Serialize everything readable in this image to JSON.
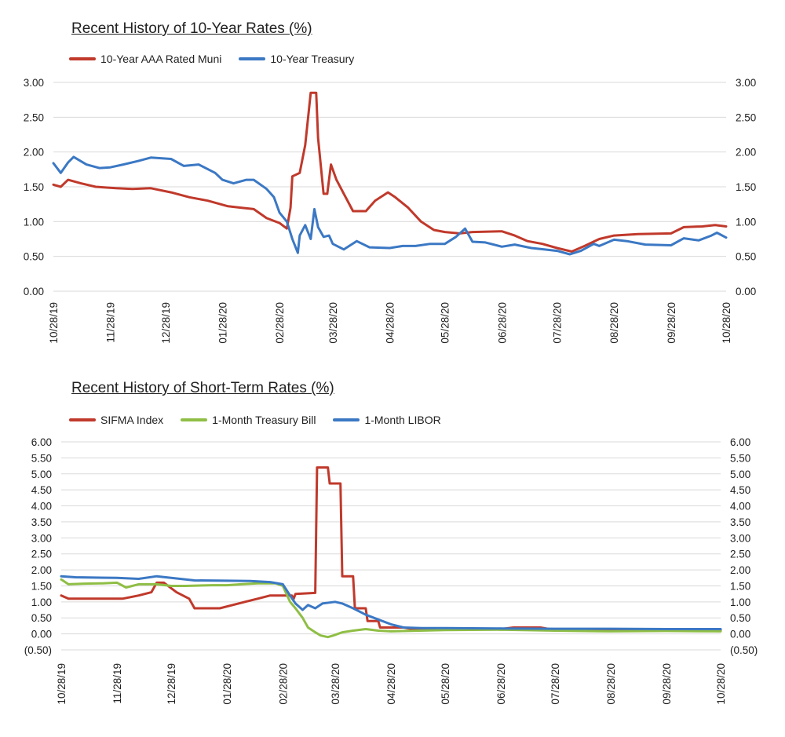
{
  "colors": {
    "red": "#c0392b",
    "blue": "#3b78c4",
    "green": "#8fbe45",
    "grid": "#d9d9d9"
  },
  "chart_data": [
    {
      "type": "line",
      "title": "Recent History of 10-Year Rates (%)",
      "x_axis": {
        "type": "date",
        "labels": [
          "10/28/19",
          "11/28/19",
          "12/28/19",
          "01/28/20",
          "02/28/20",
          "03/28/20",
          "04/28/20",
          "05/28/20",
          "06/28/20",
          "07/28/20",
          "08/28/20",
          "09/28/20",
          "10/28/20"
        ]
      },
      "y_axis": {
        "min": 0,
        "max": 3.0,
        "step": 0.5,
        "tick_labels": [
          "0.00",
          "0.50",
          "1.00",
          "1.50",
          "2.00",
          "2.50",
          "3.00"
        ],
        "right_tick_labels": [
          "0.00",
          "0.50",
          "1.00",
          "1.50",
          "2.00",
          "2.50",
          "3.00"
        ]
      },
      "grid": true,
      "legend_position": "top-left",
      "series": [
        {
          "name": "10-Year AAA Rated Muni",
          "color": "#c0392b",
          "points": [
            [
              "10/28/19",
              1.53
            ],
            [
              "11/01/19",
              1.5
            ],
            [
              "11/05/19",
              1.6
            ],
            [
              "11/12/19",
              1.55
            ],
            [
              "11/20/19",
              1.5
            ],
            [
              "12/01/19",
              1.48
            ],
            [
              "12/10/19",
              1.47
            ],
            [
              "12/20/19",
              1.48
            ],
            [
              "12/31/19",
              1.42
            ],
            [
              "01/10/20",
              1.35
            ],
            [
              "01/20/20",
              1.3
            ],
            [
              "01/31/20",
              1.22
            ],
            [
              "02/07/20",
              1.2
            ],
            [
              "02/14/20",
              1.18
            ],
            [
              "02/21/20",
              1.05
            ],
            [
              "02/28/20",
              0.98
            ],
            [
              "03/03/20",
              0.9
            ],
            [
              "03/05/20",
              1.2
            ],
            [
              "03/06/20",
              1.65
            ],
            [
              "03/10/20",
              1.7
            ],
            [
              "03/13/20",
              2.1
            ],
            [
              "03/16/20",
              2.85
            ],
            [
              "03/19/20",
              2.85
            ],
            [
              "03/20/20",
              2.2
            ],
            [
              "03/23/20",
              1.4
            ],
            [
              "03/25/20",
              1.4
            ],
            [
              "03/27/20",
              1.82
            ],
            [
              "03/30/20",
              1.6
            ],
            [
              "04/03/20",
              1.4
            ],
            [
              "04/08/20",
              1.15
            ],
            [
              "04/15/20",
              1.15
            ],
            [
              "04/20/20",
              1.3
            ],
            [
              "04/27/20",
              1.42
            ],
            [
              "05/01/20",
              1.35
            ],
            [
              "05/08/20",
              1.2
            ],
            [
              "05/15/20",
              1.0
            ],
            [
              "05/22/20",
              0.88
            ],
            [
              "05/28/20",
              0.85
            ],
            [
              "06/05/20",
              0.83
            ],
            [
              "06/12/20",
              0.85
            ],
            [
              "06/28/20",
              0.86
            ],
            [
              "07/05/20",
              0.8
            ],
            [
              "07/12/20",
              0.72
            ],
            [
              "07/20/20",
              0.68
            ],
            [
              "07/28/20",
              0.62
            ],
            [
              "08/05/20",
              0.57
            ],
            [
              "08/12/20",
              0.65
            ],
            [
              "08/20/20",
              0.75
            ],
            [
              "08/28/20",
              0.8
            ],
            [
              "09/10/20",
              0.82
            ],
            [
              "09/28/20",
              0.83
            ],
            [
              "10/05/20",
              0.92
            ],
            [
              "10/15/20",
              0.93
            ],
            [
              "10/22/20",
              0.95
            ],
            [
              "10/28/20",
              0.93
            ]
          ]
        },
        {
          "name": "10-Year Treasury",
          "color": "#3b78c4",
          "points": [
            [
              "10/28/19",
              1.84
            ],
            [
              "11/01/19",
              1.7
            ],
            [
              "11/05/19",
              1.85
            ],
            [
              "11/08/19",
              1.93
            ],
            [
              "11/15/19",
              1.82
            ],
            [
              "11/22/19",
              1.77
            ],
            [
              "11/28/19",
              1.78
            ],
            [
              "12/05/19",
              1.82
            ],
            [
              "12/13/19",
              1.87
            ],
            [
              "12/20/19",
              1.92
            ],
            [
              "12/31/19",
              1.9
            ],
            [
              "01/07/20",
              1.8
            ],
            [
              "01/15/20",
              1.82
            ],
            [
              "01/24/20",
              1.7
            ],
            [
              "01/28/20",
              1.6
            ],
            [
              "02/03/20",
              1.55
            ],
            [
              "02/10/20",
              1.6
            ],
            [
              "02/14/20",
              1.6
            ],
            [
              "02/21/20",
              1.47
            ],
            [
              "02/25/20",
              1.35
            ],
            [
              "02/28/20",
              1.13
            ],
            [
              "03/03/20",
              1.0
            ],
            [
              "03/06/20",
              0.75
            ],
            [
              "03/09/20",
              0.55
            ],
            [
              "03/10/20",
              0.8
            ],
            [
              "03/13/20",
              0.95
            ],
            [
              "03/16/20",
              0.75
            ],
            [
              "03/18/20",
              1.18
            ],
            [
              "03/20/20",
              0.92
            ],
            [
              "03/23/20",
              0.78
            ],
            [
              "03/26/20",
              0.8
            ],
            [
              "03/28/20",
              0.68
            ],
            [
              "04/03/20",
              0.6
            ],
            [
              "04/10/20",
              0.72
            ],
            [
              "04/17/20",
              0.63
            ],
            [
              "04/28/20",
              0.62
            ],
            [
              "05/05/20",
              0.65
            ],
            [
              "05/12/20",
              0.65
            ],
            [
              "05/20/20",
              0.68
            ],
            [
              "05/28/20",
              0.68
            ],
            [
              "06/03/20",
              0.78
            ],
            [
              "06/08/20",
              0.9
            ],
            [
              "06/12/20",
              0.71
            ],
            [
              "06/19/20",
              0.7
            ],
            [
              "06/28/20",
              0.64
            ],
            [
              "07/05/20",
              0.67
            ],
            [
              "07/14/20",
              0.62
            ],
            [
              "07/21/20",
              0.6
            ],
            [
              "07/28/20",
              0.58
            ],
            [
              "08/04/20",
              0.53
            ],
            [
              "08/10/20",
              0.58
            ],
            [
              "08/17/20",
              0.68
            ],
            [
              "08/20/20",
              0.65
            ],
            [
              "08/28/20",
              0.74
            ],
            [
              "09/04/20",
              0.72
            ],
            [
              "09/14/20",
              0.67
            ],
            [
              "09/28/20",
              0.66
            ],
            [
              "10/05/20",
              0.76
            ],
            [
              "10/13/20",
              0.73
            ],
            [
              "10/20/20",
              0.8
            ],
            [
              "10/23/20",
              0.84
            ],
            [
              "10/28/20",
              0.77
            ]
          ]
        }
      ]
    },
    {
      "type": "line",
      "title": "Recent History of Short-Term Rates (%)",
      "x_axis": {
        "type": "date",
        "labels": [
          "10/28/19",
          "11/28/19",
          "12/28/19",
          "01/28/20",
          "02/28/20",
          "03/28/20",
          "04/28/20",
          "05/28/20",
          "06/28/20",
          "07/28/20",
          "08/28/20",
          "09/28/20",
          "10/28/20"
        ]
      },
      "y_axis": {
        "min": -0.5,
        "max": 6.0,
        "step": 0.5,
        "tick_labels": [
          "(0.50)",
          "0.00",
          "0.50",
          "1.00",
          "1.50",
          "2.00",
          "2.50",
          "3.00",
          "3.50",
          "4.00",
          "4.50",
          "5.00",
          "5.50",
          "6.00"
        ],
        "right_tick_labels": [
          "(0.50)",
          "0.00",
          "0.50",
          "1.00",
          "1.50",
          "2.00",
          "2.50",
          "3.00",
          "3.50",
          "4.00",
          "4.50",
          "5.00",
          "5.50",
          "6.00"
        ]
      },
      "grid": true,
      "legend_position": "top-left",
      "series": [
        {
          "name": "SIFMA Index",
          "color": "#c0392b",
          "points": [
            [
              "10/28/19",
              1.2
            ],
            [
              "11/01/19",
              1.1
            ],
            [
              "11/20/19",
              1.1
            ],
            [
              "12/01/19",
              1.1
            ],
            [
              "12/10/19",
              1.2
            ],
            [
              "12/17/19",
              1.3
            ],
            [
              "12/20/19",
              1.6
            ],
            [
              "12/24/19",
              1.6
            ],
            [
              "12/31/19",
              1.3
            ],
            [
              "01/07/20",
              1.1
            ],
            [
              "01/10/20",
              0.8
            ],
            [
              "01/24/20",
              0.8
            ],
            [
              "01/31/20",
              0.9
            ],
            [
              "02/07/20",
              1.0
            ],
            [
              "02/14/20",
              1.1
            ],
            [
              "02/21/20",
              1.2
            ],
            [
              "03/04/20",
              1.2
            ],
            [
              "03/05/20",
              1.1
            ],
            [
              "03/06/20",
              1.25
            ],
            [
              "03/17/20",
              1.28
            ],
            [
              "03/18/20",
              5.2
            ],
            [
              "03/24/20",
              5.2
            ],
            [
              "03/25/20",
              4.7
            ],
            [
              "03/31/20",
              4.7
            ],
            [
              "04/01/20",
              1.8
            ],
            [
              "04/07/20",
              1.8
            ],
            [
              "04/08/20",
              0.8
            ],
            [
              "04/14/20",
              0.8
            ],
            [
              "04/15/20",
              0.4
            ],
            [
              "04/21/20",
              0.4
            ],
            [
              "04/22/20",
              0.2
            ],
            [
              "05/05/20",
              0.2
            ],
            [
              "05/10/20",
              0.15
            ],
            [
              "06/28/20",
              0.15
            ],
            [
              "07/05/20",
              0.2
            ],
            [
              "07/20/20",
              0.2
            ],
            [
              "07/28/20",
              0.12
            ],
            [
              "10/28/20",
              0.12
            ]
          ]
        },
        {
          "name": "1-Month Treasury Bill",
          "color": "#8fbe45",
          "points": [
            [
              "10/28/19",
              1.7
            ],
            [
              "11/01/19",
              1.55
            ],
            [
              "11/10/19",
              1.57
            ],
            [
              "11/20/19",
              1.58
            ],
            [
              "11/28/19",
              1.6
            ],
            [
              "12/03/19",
              1.45
            ],
            [
              "12/10/19",
              1.55
            ],
            [
              "12/20/19",
              1.55
            ],
            [
              "12/28/19",
              1.5
            ],
            [
              "01/05/20",
              1.5
            ],
            [
              "01/20/20",
              1.52
            ],
            [
              "01/28/20",
              1.52
            ],
            [
              "02/05/20",
              1.55
            ],
            [
              "02/14/20",
              1.58
            ],
            [
              "02/24/20",
              1.58
            ],
            [
              "02/28/20",
              1.5
            ],
            [
              "03/03/20",
              1.0
            ],
            [
              "03/06/20",
              0.8
            ],
            [
              "03/10/20",
              0.5
            ],
            [
              "03/13/20",
              0.2
            ],
            [
              "03/17/20",
              0.05
            ],
            [
              "03/20/20",
              -0.05
            ],
            [
              "03/24/20",
              -0.1
            ],
            [
              "03/27/20",
              -0.05
            ],
            [
              "04/01/20",
              0.05
            ],
            [
              "04/07/20",
              0.1
            ],
            [
              "04/14/20",
              0.15
            ],
            [
              "04/21/20",
              0.1
            ],
            [
              "04/28/20",
              0.08
            ],
            [
              "05/28/20",
              0.12
            ],
            [
              "06/28/20",
              0.13
            ],
            [
              "07/28/20",
              0.1
            ],
            [
              "08/28/20",
              0.08
            ],
            [
              "09/28/20",
              0.09
            ],
            [
              "10/28/20",
              0.08
            ]
          ]
        },
        {
          "name": "1-Month LIBOR",
          "color": "#3b78c4",
          "points": [
            [
              "10/28/19",
              1.8
            ],
            [
              "11/05/19",
              1.77
            ],
            [
              "11/28/19",
              1.75
            ],
            [
              "12/10/19",
              1.72
            ],
            [
              "12/20/19",
              1.8
            ],
            [
              "12/28/19",
              1.75
            ],
            [
              "01/10/20",
              1.67
            ],
            [
              "01/28/20",
              1.66
            ],
            [
              "02/10/20",
              1.65
            ],
            [
              "02/21/20",
              1.62
            ],
            [
              "02/28/20",
              1.55
            ],
            [
              "03/03/20",
              1.2
            ],
            [
              "03/06/20",
              0.95
            ],
            [
              "03/10/20",
              0.75
            ],
            [
              "03/13/20",
              0.9
            ],
            [
              "03/17/20",
              0.8
            ],
            [
              "03/21/20",
              0.95
            ],
            [
              "03/25/20",
              0.98
            ],
            [
              "03/28/20",
              1.0
            ],
            [
              "04/01/20",
              0.95
            ],
            [
              "04/07/20",
              0.8
            ],
            [
              "04/14/20",
              0.6
            ],
            [
              "04/21/20",
              0.45
            ],
            [
              "04/28/20",
              0.3
            ],
            [
              "05/05/20",
              0.2
            ],
            [
              "05/15/20",
              0.18
            ],
            [
              "05/28/20",
              0.18
            ],
            [
              "06/28/20",
              0.17
            ],
            [
              "07/28/20",
              0.16
            ],
            [
              "08/28/20",
              0.16
            ],
            [
              "09/28/20",
              0.15
            ],
            [
              "10/28/20",
              0.15
            ]
          ]
        }
      ]
    }
  ]
}
